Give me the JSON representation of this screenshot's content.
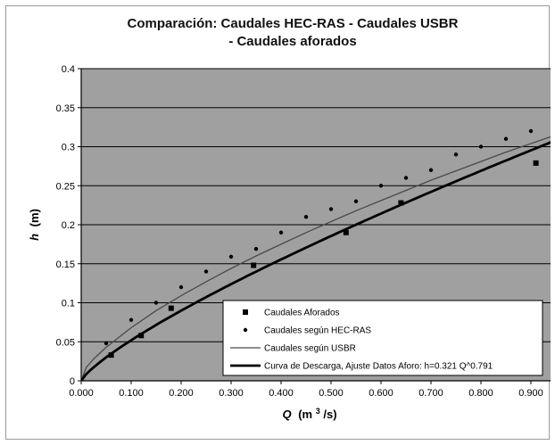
{
  "chart_data": {
    "type": "scatter",
    "title_lines": [
      "Comparación: Caudales HEC-RAS - Caudales USBR",
      "- Caudales aforados"
    ],
    "xlabel": {
      "symbol": "Q",
      "unit": "(m",
      "sup": "3",
      "unit_end": "/s)"
    },
    "ylabel": {
      "symbol": "h",
      "unit": "(m)"
    },
    "xlim": [
      0,
      0.95
    ],
    "ylim": [
      0,
      0.4
    ],
    "x_ticks": [
      "0.000",
      "0.100",
      "0.200",
      "0.300",
      "0.400",
      "0.500",
      "0.600",
      "0.700",
      "0.800",
      "0.900"
    ],
    "y_ticks": [
      "0",
      "0.05",
      "0.1",
      "0.15",
      "0.2",
      "0.25",
      "0.3",
      "0.35",
      "0.4"
    ],
    "grid": true,
    "plot_background": "#a0a0a0",
    "legend_position": "bottom-right",
    "series": [
      {
        "name": "Caudales Aforados",
        "kind": "square-markers",
        "color": "#000000",
        "points": [
          [
            0.06,
            0.033
          ],
          [
            0.12,
            0.058
          ],
          [
            0.18,
            0.093
          ],
          [
            0.345,
            0.148
          ],
          [
            0.53,
            0.19
          ],
          [
            0.64,
            0.228
          ],
          [
            0.91,
            0.279
          ]
        ]
      },
      {
        "name": "Caudales según HEC-RAS",
        "kind": "dot-markers",
        "color": "#000000",
        "points": [
          [
            0.05,
            0.048
          ],
          [
            0.1,
            0.078
          ],
          [
            0.15,
            0.1
          ],
          [
            0.2,
            0.12
          ],
          [
            0.25,
            0.14
          ],
          [
            0.3,
            0.159
          ],
          [
            0.35,
            0.169
          ],
          [
            0.4,
            0.19
          ],
          [
            0.45,
            0.21
          ],
          [
            0.5,
            0.22
          ],
          [
            0.55,
            0.23
          ],
          [
            0.6,
            0.25
          ],
          [
            0.65,
            0.26
          ],
          [
            0.7,
            0.27
          ],
          [
            0.75,
            0.29
          ],
          [
            0.8,
            0.3
          ],
          [
            0.85,
            0.31
          ],
          [
            0.9,
            0.32
          ]
        ]
      },
      {
        "name": "Caudales según USBR",
        "kind": "thin-line",
        "color": "#4a4a4a",
        "points": [
          [
            0,
            0
          ],
          [
            0.01,
            0.017
          ],
          [
            0.025,
            0.028
          ],
          [
            0.05,
            0.043
          ],
          [
            0.1,
            0.068
          ],
          [
            0.15,
            0.09
          ],
          [
            0.2,
            0.109
          ],
          [
            0.25,
            0.127
          ],
          [
            0.3,
            0.144
          ],
          [
            0.35,
            0.16
          ],
          [
            0.4,
            0.175
          ],
          [
            0.45,
            0.19
          ],
          [
            0.5,
            0.204
          ],
          [
            0.55,
            0.218
          ],
          [
            0.6,
            0.231
          ],
          [
            0.65,
            0.244
          ],
          [
            0.7,
            0.257
          ],
          [
            0.75,
            0.269
          ],
          [
            0.8,
            0.281
          ],
          [
            0.85,
            0.293
          ],
          [
            0.9,
            0.304
          ],
          [
            0.95,
            0.315
          ]
        ]
      },
      {
        "name": "Curva de Descarga, Ajuste Datos Aforo:  h=0.321 Q^0.791",
        "kind": "thick-line",
        "color": "#000000",
        "formula": {
          "a": 0.321,
          "b": 0.791
        }
      }
    ]
  }
}
